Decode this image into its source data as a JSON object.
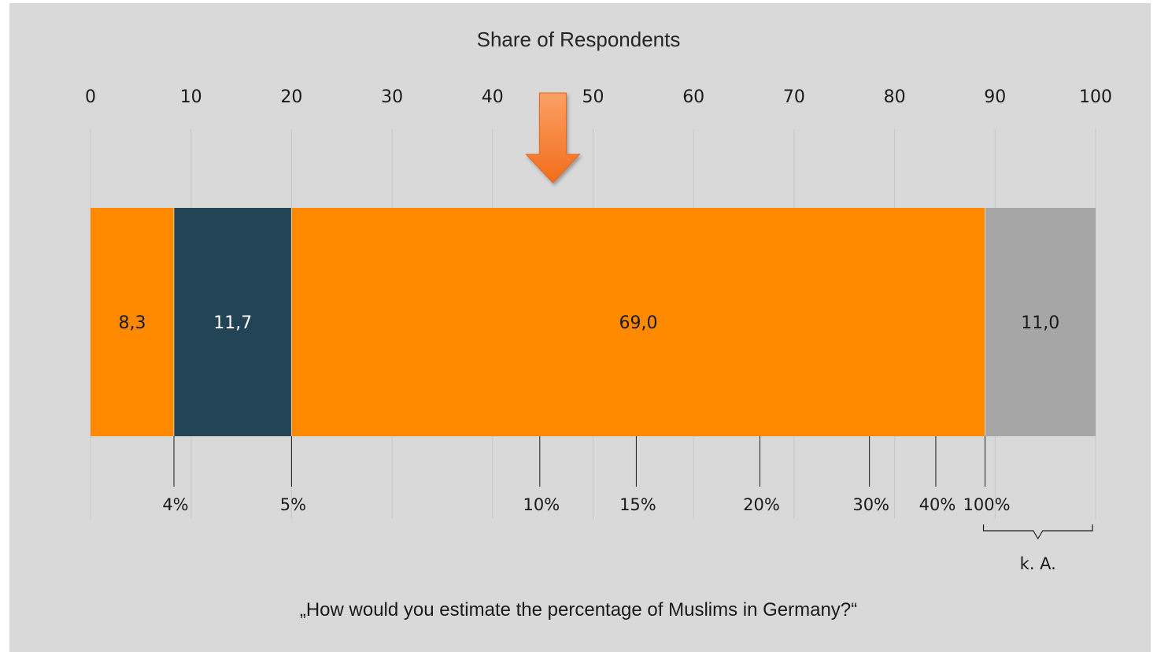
{
  "chart_data": {
    "type": "bar",
    "orientation": "horizontal-stacked",
    "title": "Share of Respondents",
    "xlim": [
      0,
      100
    ],
    "x_ticks": [
      "0",
      "10",
      "20",
      "30",
      "40",
      "50",
      "60",
      "70",
      "80",
      "90",
      "100"
    ],
    "grid": true,
    "series": [
      {
        "label": "8,3",
        "value": 8.3,
        "color": "#ff8a00",
        "text_color": "#1a1a1a"
      },
      {
        "label": "11,7",
        "value": 11.7,
        "color": "#234455",
        "text_color": "#ffffff"
      },
      {
        "label": "69,0",
        "value": 69.0,
        "color": "#ff8a00",
        "text_color": "#1a1a1a"
      },
      {
        "label": "11,0",
        "value": 11.0,
        "color": "#a6a6a6",
        "text_color": "#1a1a1a"
      }
    ],
    "estimate_markers": [
      {
        "label": "4%",
        "value": 8.3
      },
      {
        "label": "5%",
        "value": 20.0
      },
      {
        "label": "10%",
        "value": 44.7
      },
      {
        "label": "15%",
        "value": 54.3
      },
      {
        "label": "20%",
        "value": 66.6
      },
      {
        "label": "30%",
        "value": 77.5
      },
      {
        "label": "40%",
        "value": 84.1
      },
      {
        "label": "100%",
        "value": 89.0
      }
    ],
    "arrow": {
      "value": 46.0,
      "color": "#f58220"
    },
    "no_answer_label": "k. A.",
    "no_answer_range": [
      89,
      100
    ],
    "question": "„How would you estimate the percentage of Muslims in Germany?“"
  }
}
